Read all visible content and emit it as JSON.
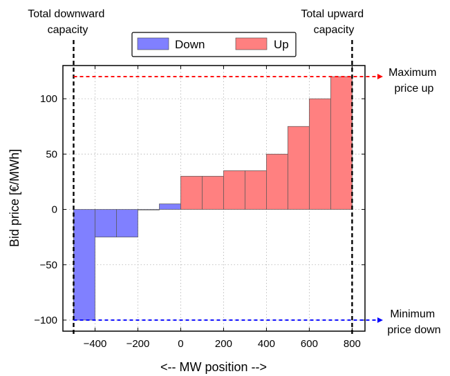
{
  "chart_data": {
    "type": "bar",
    "xlabel": "<-- MW position -->",
    "ylabel": "Bid price [€/MWh]",
    "xlim": [
      -550,
      860
    ],
    "ylim": [
      -110,
      130
    ],
    "xticks": [
      -400,
      -200,
      0,
      200,
      400,
      600,
      800
    ],
    "xtick_labels": [
      "−400",
      "−200",
      "0",
      "200",
      "400",
      "600",
      "800"
    ],
    "yticks": [
      -100,
      -50,
      0,
      50,
      100
    ],
    "ytick_labels": [
      "−100",
      "−50",
      "0",
      "50",
      "100"
    ],
    "grid": true,
    "legend_position": "top-center",
    "series": [
      {
        "name": "Down",
        "color": "#8080ff",
        "bars": [
          {
            "x0": -500,
            "x1": -400,
            "value": -100
          },
          {
            "x0": -400,
            "x1": -300,
            "value": -25
          },
          {
            "x0": -300,
            "x1": -200,
            "value": -25
          },
          {
            "x0": -200,
            "x1": -100,
            "value": 0
          },
          {
            "x0": -100,
            "x1": 0,
            "value": 5
          }
        ]
      },
      {
        "name": "Up",
        "color": "#ff8080",
        "bars": [
          {
            "x0": 0,
            "x1": 100,
            "value": 30
          },
          {
            "x0": 100,
            "x1": 200,
            "value": 30
          },
          {
            "x0": 200,
            "x1": 300,
            "value": 35
          },
          {
            "x0": 300,
            "x1": 400,
            "value": 35
          },
          {
            "x0": 400,
            "x1": 500,
            "value": 50
          },
          {
            "x0": 500,
            "x1": 600,
            "value": 75
          },
          {
            "x0": 600,
            "x1": 700,
            "value": 100
          },
          {
            "x0": 700,
            "x1": 800,
            "value": 120
          }
        ]
      }
    ],
    "capacity_lines": [
      {
        "x": -500,
        "label_lines": [
          "Total downward",
          "capacity"
        ]
      },
      {
        "x": 800,
        "label_lines": [
          "Total upward",
          "capacity"
        ]
      }
    ],
    "price_lines": [
      {
        "y": 120,
        "color": "#ff0000",
        "label_lines": [
          "Maximum",
          "price up"
        ]
      },
      {
        "y": -100,
        "color": "#0000ff",
        "label_lines": [
          "Minimum",
          "price down"
        ]
      }
    ]
  }
}
